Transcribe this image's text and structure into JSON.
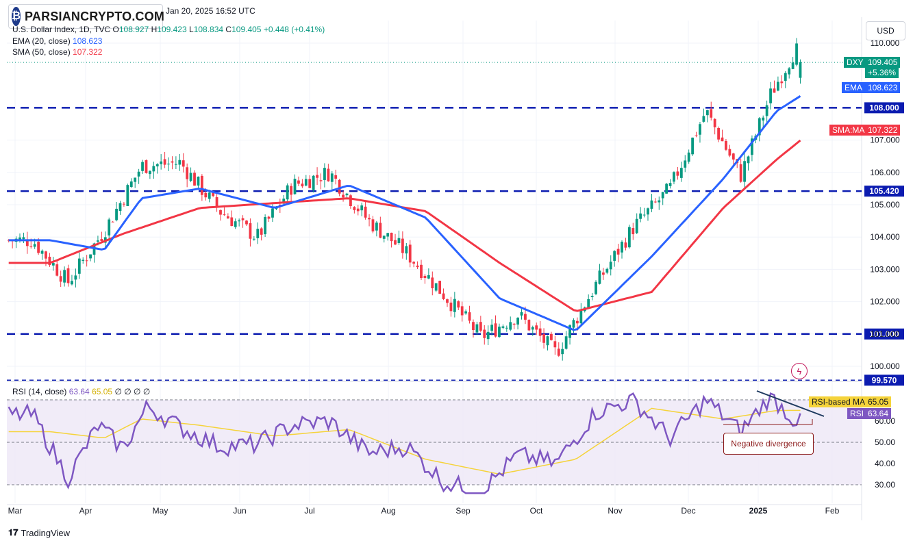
{
  "header": {
    "logo_text": "PARSIANCRYPTO.COM",
    "date": "Jan 20, 2025 16:52 UTC",
    "symbol": "U.S. Dollar Index, 1D, TVC",
    "open_label": "O",
    "open": "108.927",
    "high_label": "H",
    "high": "109.423",
    "low_label": "L",
    "low": "108.834",
    "close_label": "C",
    "close": "109.405",
    "change": "+0.448 (+0.41%)"
  },
  "indicators": {
    "ema_label": "EMA (20, close)",
    "ema_value": "108.623",
    "sma_label": "SMA (50, close)",
    "sma_value": "107.322",
    "rsi_label": "RSI (14, close)",
    "rsi_value": "63.64",
    "rsi_ma_value": "65.05",
    "rsi_extra": "∅ ∅ ∅ ∅"
  },
  "currency_button": "USD",
  "price_tags": {
    "dxy_symbol": "DXY",
    "dxy_price": "109.405",
    "dxy_change": "+5.36%",
    "ema_tag": "EMA",
    "ema_price": "108.623",
    "sma_tag": "SMA:MA",
    "sma_price": "107.322",
    "rsi_ma_tag": "RSI-based MA",
    "rsi_ma_price": "65.05",
    "rsi_tag": "RSI",
    "rsi_price": "63.64"
  },
  "annotation": "Negative divergence",
  "brand": "TradingView",
  "colors": {
    "up": "#089981",
    "down": "#f23645",
    "ema": "#2962ff",
    "sma": "#f23645",
    "level_line": "#0b1bb0",
    "rsi": "#7e57c2",
    "rsi_ma": "#f5d33a",
    "rsi_band": "#ede7f6"
  },
  "chart_data": [
    {
      "type": "candlestick",
      "title": "U.S. Dollar Index, 1D, TVC",
      "x_tick_labels": [
        "Mar",
        "Apr",
        "May",
        "Jun",
        "Jul",
        "Aug",
        "Sep",
        "Oct",
        "Nov",
        "Dec",
        "2025",
        "Feb"
      ],
      "y_tick_labels": [
        "100.000",
        "101.000",
        "102.000",
        "103.000",
        "104.000",
        "105.000",
        "106.000",
        "107.000",
        "110.000"
      ],
      "ylim": [
        99.57,
        110.6
      ],
      "horizontal_levels": [
        "108.000",
        "105.420",
        "101.000",
        "99.570"
      ],
      "price_anchor_points": [
        [
          "Mar",
          103.9
        ],
        [
          "Mar",
          102.6
        ],
        [
          "Apr",
          104.2
        ],
        [
          "Apr",
          106.2
        ],
        [
          "May",
          106.3
        ],
        [
          "May",
          104.8
        ],
        [
          "Jun",
          104.0
        ],
        [
          "Jun",
          105.6
        ],
        [
          "Jul",
          106.0
        ],
        [
          "Jul",
          104.5
        ],
        [
          "Aug",
          103.5
        ],
        [
          "Aug",
          102.2
        ],
        [
          "Sep",
          100.9
        ],
        [
          "Sep",
          101.6
        ],
        [
          "Oct",
          100.4
        ],
        [
          "Oct",
          102.5
        ],
        [
          "Nov",
          104.3
        ],
        [
          "Nov",
          105.5
        ],
        [
          "Dec",
          107.9
        ],
        [
          "Dec",
          105.9
        ],
        [
          "2025",
          108.4
        ],
        [
          "2025",
          109.8
        ],
        [
          "2025",
          109.405
        ]
      ],
      "ema_anchor_points": [
        [
          "Mar",
          103.9
        ],
        [
          "Apr",
          103.6
        ],
        [
          "Apr",
          105.2
        ],
        [
          "May",
          105.5
        ],
        [
          "Jun",
          104.9
        ],
        [
          "Jul",
          105.6
        ],
        [
          "Aug",
          104.6
        ],
        [
          "Sep",
          102.1
        ],
        [
          "Oct",
          101.1
        ],
        [
          "Nov",
          103.4
        ],
        [
          "Dec",
          105.8
        ],
        [
          "2025",
          107.9
        ],
        [
          "2025",
          108.623
        ]
      ],
      "sma_anchor_points": [
        [
          "Mar",
          103.2
        ],
        [
          "Apr",
          104.1
        ],
        [
          "May",
          104.9
        ],
        [
          "Jul",
          105.2
        ],
        [
          "Aug",
          104.8
        ],
        [
          "Sep",
          103.2
        ],
        [
          "Oct",
          101.7
        ],
        [
          "Nov",
          102.3
        ],
        [
          "Dec",
          104.9
        ],
        [
          "2025",
          106.4
        ],
        [
          "2025",
          107.322
        ]
      ]
    },
    {
      "type": "line",
      "title": "RSI (14, close)",
      "y_tick_labels": [
        "30.00",
        "40.00",
        "50.00",
        "60.00"
      ],
      "ylim": [
        27,
        72
      ],
      "overbought": 70,
      "oversold": 30,
      "middle": 50,
      "series": [
        {
          "name": "RSI",
          "points": [
            [
              "Mar",
              63
            ],
            [
              "Mar",
              33
            ],
            [
              "Apr",
              58
            ],
            [
              "Apr",
              47
            ],
            [
              "Apr",
              67
            ],
            [
              "May",
              57
            ],
            [
              "May",
              48
            ],
            [
              "Jun",
              49
            ],
            [
              "Jun",
              58
            ],
            [
              "Jul",
              60
            ],
            [
              "Jul",
              45
            ],
            [
              "Aug",
              48
            ],
            [
              "Aug",
              31
            ],
            [
              "Sep",
              27
            ],
            [
              "Sep",
              44
            ],
            [
              "Oct",
              40
            ],
            [
              "Oct",
              64
            ],
            [
              "Nov",
              70
            ],
            [
              "Nov",
              52
            ],
            [
              "Dec",
              70
            ],
            [
              "Dec",
              55
            ],
            [
              "2025",
              72
            ],
            [
              "2025",
              60
            ],
            [
              "2025",
              63.64
            ]
          ]
        },
        {
          "name": "RSI-based MA",
          "points": [
            [
              "Mar",
              55
            ],
            [
              "Apr",
              52
            ],
            [
              "Apr",
              61
            ],
            [
              "May",
              58
            ],
            [
              "Jun",
              53
            ],
            [
              "Jul",
              56
            ],
            [
              "Aug",
              42
            ],
            [
              "Sep",
              35
            ],
            [
              "Oct",
              42
            ],
            [
              "Nov",
              66
            ],
            [
              "Dec",
              61
            ],
            [
              "2025",
              65
            ],
            [
              "2025",
              65.05
            ]
          ]
        }
      ],
      "annotations": [
        "Negative divergence"
      ]
    }
  ]
}
